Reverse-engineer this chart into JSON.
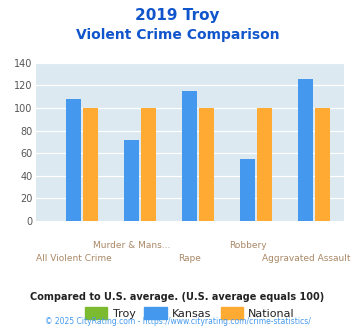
{
  "title_line1": "2019 Troy",
  "title_line2": "Violent Crime Comparison",
  "categories": [
    "All Violent Crime",
    "Murder & Mans...",
    "Rape",
    "Robbery",
    "Aggravated Assault"
  ],
  "troy": [
    0,
    0,
    0,
    0,
    0
  ],
  "kansas": [
    108,
    72,
    115,
    55,
    126
  ],
  "national": [
    100,
    100,
    100,
    100,
    100
  ],
  "troy_color": "#7cba2f",
  "kansas_color": "#4499ee",
  "national_color": "#ffaa33",
  "ylim": [
    0,
    140
  ],
  "yticks": [
    0,
    20,
    40,
    60,
    80,
    100,
    120,
    140
  ],
  "plot_bg": "#dce9f0",
  "title_color": "#1155cc",
  "xlabel_color_upper": "#aa8866",
  "xlabel_color_lower": "#aa8866",
  "grid_color": "#ffffff",
  "footer_text": "Compared to U.S. average. (U.S. average equals 100)",
  "copyright_text": "© 2025 CityRating.com - https://www.cityrating.com/crime-statistics/",
  "footer_color": "#222222",
  "copyright_color": "#4499ee",
  "legend_labels": [
    "Troy",
    "Kansas",
    "National"
  ],
  "bar_width": 0.26
}
